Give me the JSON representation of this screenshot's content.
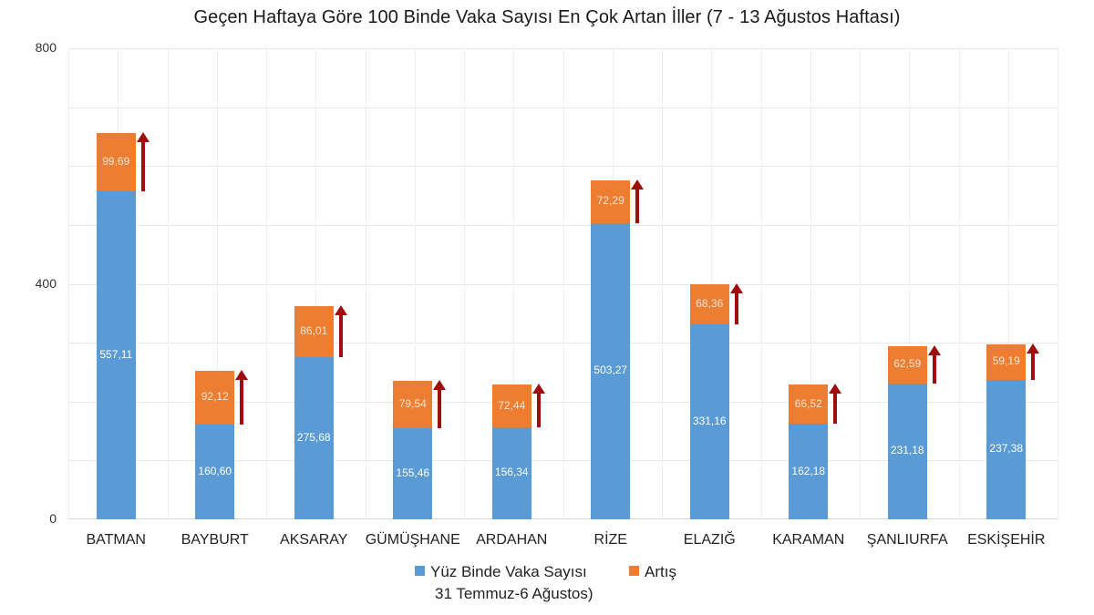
{
  "chart_data": {
    "type": "bar",
    "stacked": true,
    "title": "Geçen Haftaya Göre 100 Binde Vaka Sayısı En Çok Artan İller (7 - 13 Ağustos Haftası)",
    "xlabel": "",
    "ylabel": "",
    "ylim": [
      0,
      800
    ],
    "yticks": [
      "0",
      "400",
      "800"
    ],
    "grid": true,
    "legend_position": "bottom",
    "categories": [
      "BATMAN",
      "BAYBURT",
      "AKSARAY",
      "GÜMÜŞHANE",
      "ARDAHAN",
      "RİZE",
      "ELAZIĞ",
      "KARAMAN",
      "ŞANLIURFA",
      "ESKİŞEHİR"
    ],
    "series": [
      {
        "name": "Yüz Binde Vaka Sayısı 31 Temmuz-6 Ağustos)",
        "color": "#5b9bd5",
        "values": [
          557.11,
          160.6,
          275.68,
          155.46,
          156.34,
          503.27,
          331.16,
          162.18,
          231.18,
          237.38
        ],
        "labels": [
          "557,11",
          "160,60",
          "275,68",
          "155,46",
          "156,34",
          "503,27",
          "331,16",
          "162,18",
          "231,18",
          "237,38"
        ]
      },
      {
        "name": "Artış",
        "color": "#ed7d31",
        "values": [
          99.69,
          92.12,
          86.01,
          79.54,
          72.44,
          72.29,
          68.36,
          66.52,
          62.59,
          59.19
        ],
        "labels": [
          "99,69",
          "92,12",
          "86,01",
          "79,54",
          "72,44",
          "72,29",
          "68,36",
          "66,52",
          "62,59",
          "59,19"
        ]
      }
    ],
    "annotations": "Dark red upward arrow to the right of each bar indicating increase",
    "arrow_color": "#9e0e0e"
  },
  "legend": {
    "base_line1": "Yüz Binde Vaka Sayısı",
    "base_line2": "31 Temmuz-6 Ağustos)",
    "increase": "Artış"
  }
}
